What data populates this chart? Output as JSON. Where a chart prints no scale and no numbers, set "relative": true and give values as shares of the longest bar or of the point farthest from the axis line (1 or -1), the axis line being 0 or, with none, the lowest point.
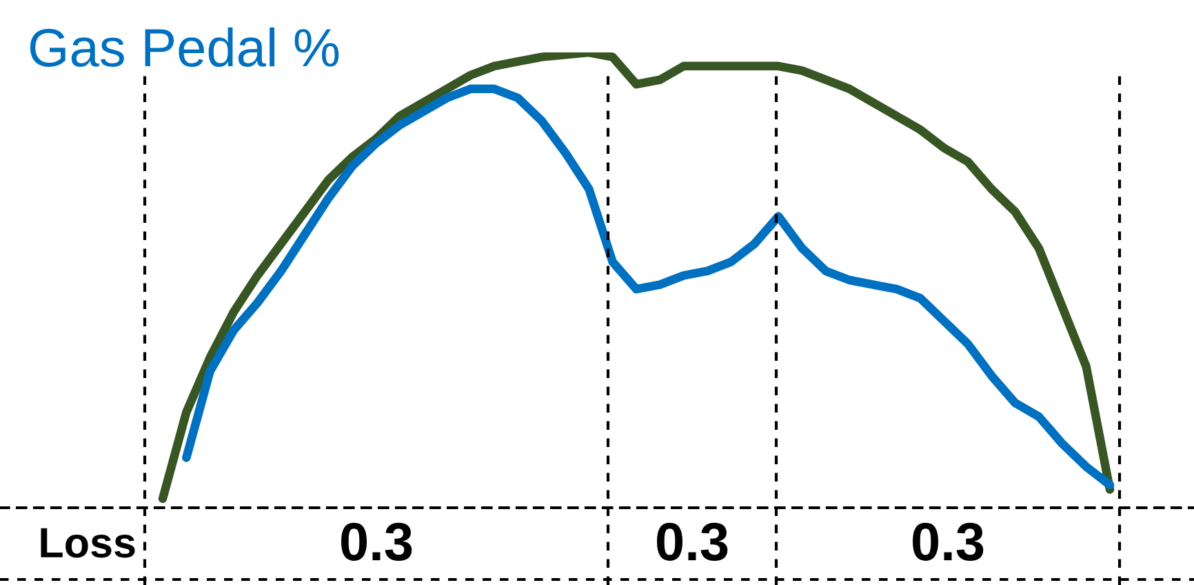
{
  "chart_data": {
    "type": "line",
    "title": "Gas Pedal %",
    "relative": true,
    "categories": [
      null,
      null,
      null,
      null,
      null,
      null,
      null,
      null,
      null,
      null,
      null,
      null,
      null,
      null,
      null,
      null,
      null,
      null,
      null,
      null,
      null,
      null,
      null,
      null,
      null,
      null,
      null,
      null,
      null,
      null,
      null,
      null,
      null,
      null,
      null,
      null,
      null,
      null,
      null,
      null,
      null
    ],
    "series": [
      {
        "color": "#375623",
        "values": [
          0.02,
          0.21,
          0.33,
          0.43,
          0.51,
          0.58,
          0.65,
          0.72,
          0.77,
          0.81,
          0.86,
          0.89,
          0.92,
          0.95,
          0.97,
          0.98,
          0.99,
          0.995,
          1,
          0.99,
          0.93,
          0.94,
          0.97,
          0.97,
          0.97,
          0.97,
          0.97,
          0.96,
          0.94,
          0.92,
          0.89,
          0.86,
          0.83,
          0.79,
          0.76,
          0.7,
          0.65,
          0.57,
          0.44,
          0.31,
          0.04
        ]
      },
      {
        "color": "#0070c0",
        "values": [
          null,
          0.11,
          0.3,
          0.39,
          0.45,
          0.52,
          0.6,
          0.68,
          0.75,
          0.8,
          0.84,
          0.87,
          0.9,
          0.92,
          0.92,
          0.9,
          0.85,
          0.78,
          0.7,
          0.54,
          0.48,
          0.49,
          0.51,
          0.52,
          0.54,
          0.58,
          0.64,
          0.57,
          0.52,
          0.5,
          0.49,
          0.48,
          0.46,
          0.41,
          0.36,
          0.29,
          0.23,
          0.2,
          0.14,
          0.09,
          0.05
        ]
      }
    ],
    "annotations": [
      "Loss",
      "0.3",
      "0.3",
      "0.3"
    ]
  }
}
